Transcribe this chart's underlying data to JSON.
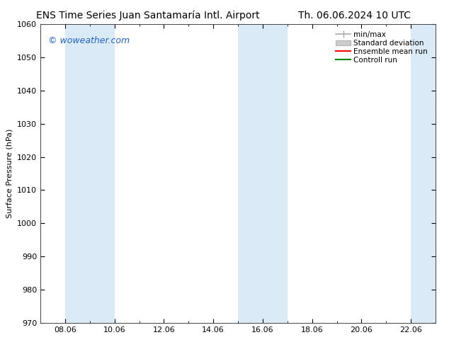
{
  "title_left": "ENS Time Series Juan Santamaría Intl. Airport",
  "title_right": "Th. 06.06.2024 10 UTC",
  "ylabel": "Surface Pressure (hPa)",
  "ylim": [
    970,
    1060
  ],
  "yticks": [
    970,
    980,
    990,
    1000,
    1010,
    1020,
    1030,
    1040,
    1050,
    1060
  ],
  "xtick_labels": [
    "08.06",
    "10.06",
    "12.06",
    "14.06",
    "16.06",
    "18.06",
    "20.06",
    "22.06"
  ],
  "xtick_positions": [
    1,
    3,
    5,
    7,
    9,
    11,
    13,
    15
  ],
  "xlim": [
    0,
    16
  ],
  "blue_bands": [
    {
      "start": 1,
      "end": 3
    },
    {
      "start": 8,
      "end": 10
    },
    {
      "start": 15,
      "end": 16
    }
  ],
  "band_color": "#daeaf6",
  "background_color": "#ffffff",
  "plot_bg_color": "#ffffff",
  "watermark": "© woweather.com",
  "legend_items": [
    {
      "label": "min/max",
      "color": "#aaaaaa",
      "style": "minmax"
    },
    {
      "label": "Standard deviation",
      "color": "#cccccc",
      "style": "box"
    },
    {
      "label": "Ensemble mean run",
      "color": "#ff0000",
      "style": "line"
    },
    {
      "label": "Controll run",
      "color": "#008800",
      "style": "line"
    }
  ],
  "title_fontsize": 10,
  "axis_label_fontsize": 8,
  "tick_fontsize": 8,
  "legend_fontsize": 7.5,
  "watermark_color": "#2060cc",
  "watermark_fontsize": 9
}
